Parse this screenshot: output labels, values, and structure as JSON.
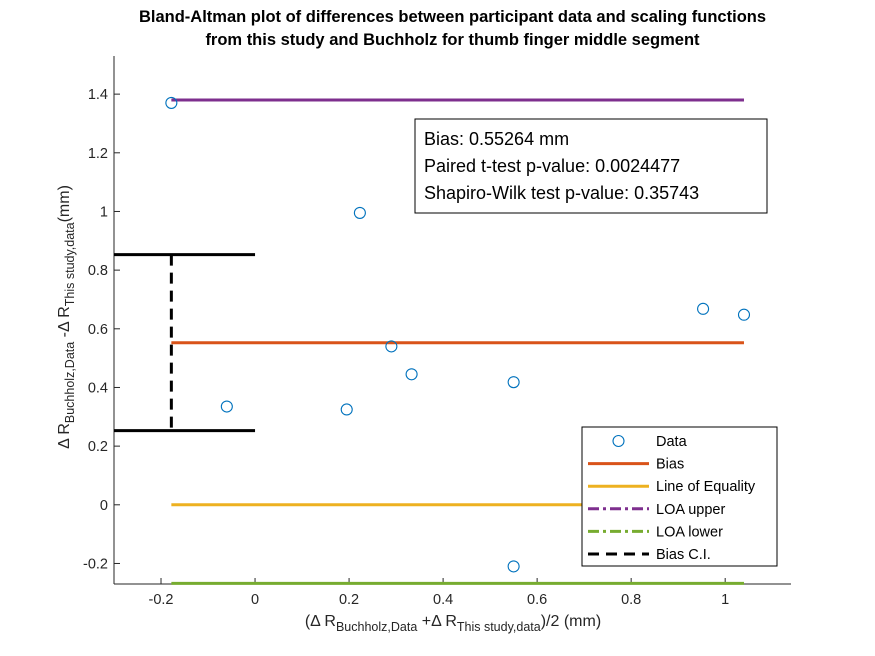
{
  "chart_data": {
    "type": "scatter",
    "title_lines": [
      "Bland-Altman plot of differences between participant data and scaling functions",
      "from this study and Buchholz for thumb finger middle segment"
    ],
    "xlabel": {
      "pre": "(Δ R",
      "sub1": "Buchholz,Data",
      "mid": " +Δ R",
      "sub2": "This study,data",
      "post": ")/2 (mm)"
    },
    "ylabel": {
      "pre": "Δ R",
      "sub1": "Buchholz,Data",
      "mid": " -Δ R",
      "sub2": "This study,data",
      "post": "(mm)"
    },
    "xlim": [
      -0.3,
      1.14
    ],
    "ylim": [
      -0.27,
      1.53
    ],
    "xticks": [
      -0.2,
      0,
      0.2,
      0.4,
      0.6,
      0.8,
      1
    ],
    "xtick_labels": [
      "-0.2",
      "0",
      "0.2",
      "0.4",
      "0.6",
      "0.8",
      "1"
    ],
    "yticks": [
      -0.2,
      0,
      0.2,
      0.4,
      0.6,
      0.8,
      1,
      1.2,
      1.4
    ],
    "ytick_labels": [
      "-0.2",
      "0",
      "0.2",
      "0.4",
      "0.6",
      "0.8",
      "1",
      "1.2",
      "1.4"
    ],
    "grid": false,
    "legend_position": "bottom-right",
    "points": [
      {
        "x": -0.178,
        "y": 1.37
      },
      {
        "x": -0.06,
        "y": 0.335
      },
      {
        "x": 0.195,
        "y": 0.325
      },
      {
        "x": 0.223,
        "y": 0.995
      },
      {
        "x": 0.29,
        "y": 0.54
      },
      {
        "x": 0.333,
        "y": 0.445
      },
      {
        "x": 0.55,
        "y": 0.418
      },
      {
        "x": 0.55,
        "y": -0.21
      },
      {
        "x": 0.953,
        "y": 0.668
      },
      {
        "x": 1.04,
        "y": 0.648
      }
    ],
    "lines": {
      "x_range": [
        -0.178,
        1.04
      ],
      "bias": 0.55264,
      "equality": 0,
      "loa_upper": 1.38,
      "loa_lower": -0.268,
      "bias_ci": {
        "x": -0.178,
        "x_end": 0.0,
        "lower": 0.253,
        "upper": 0.853
      }
    },
    "series": [
      {
        "name": "Data",
        "color": "#0072BD",
        "style": "marker-circle"
      },
      {
        "name": "Bias",
        "color": "#D95319",
        "style": "solid"
      },
      {
        "name": "Line of Equality",
        "color": "#EDB120",
        "style": "solid"
      },
      {
        "name": "LOA upper",
        "color": "#7E2F8E",
        "style": "dashdot"
      },
      {
        "name": "LOA lower",
        "color": "#77AC30",
        "style": "dashdot"
      },
      {
        "name": "Bias C.I.",
        "color": "#000000",
        "style": "dashed"
      }
    ],
    "annotation": [
      "Bias: 0.55264 mm",
      "Paired t-test p-value: 0.0024477",
      "Shapiro-Wilk test p-value: 0.35743"
    ]
  }
}
